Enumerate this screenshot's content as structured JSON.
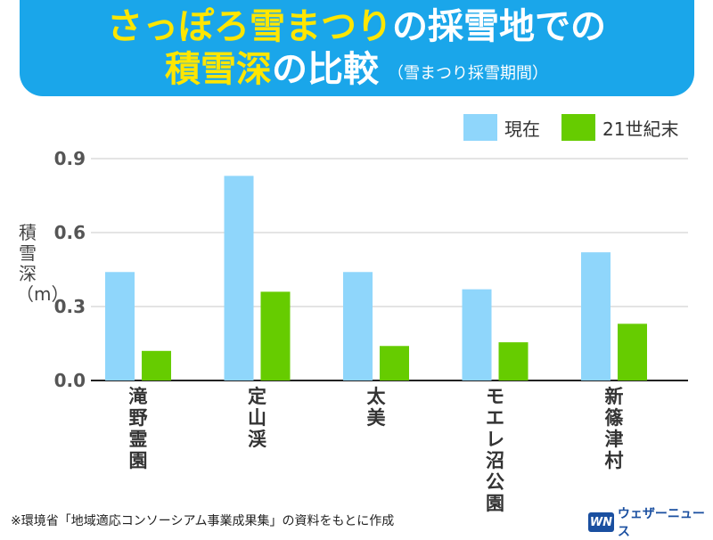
{
  "title": {
    "line1_yellow": "さっぽろ雪まつり",
    "line1_white": "の採雪地での",
    "line2_yellow": "積雪深",
    "line2_white": "の比較",
    "subtitle": "（雪まつり採雪期間）"
  },
  "legend": {
    "current": "現在",
    "future": "21世紀末"
  },
  "ylabel": "積雪深（m）",
  "footer": "※環境省「地域適応コンソーシアム事業成果集」の資料をもとに作成",
  "logo": {
    "mark": "WN",
    "name": "ウェザーニュース"
  },
  "colors": {
    "current": "#8fd6fb",
    "future": "#66cc00",
    "banner": "#1aa6ea",
    "title_accent": "#ffe600"
  },
  "chart_data": {
    "type": "bar",
    "categories": [
      "滝野霊園",
      "定山渓",
      "太美",
      "モエレ沼公園",
      "新篠津村"
    ],
    "series": [
      {
        "name": "現在",
        "values": [
          0.44,
          0.83,
          0.44,
          0.37,
          0.52
        ]
      },
      {
        "name": "21世紀末",
        "values": [
          0.12,
          0.36,
          0.14,
          0.155,
          0.23
        ]
      }
    ],
    "ylabel": "積雪深（m）",
    "ylim": [
      0,
      0.9
    ],
    "yticks": [
      "0.0",
      "0.3",
      "0.6",
      "0.9"
    ],
    "grid": true,
    "legend_position": "top-right"
  }
}
